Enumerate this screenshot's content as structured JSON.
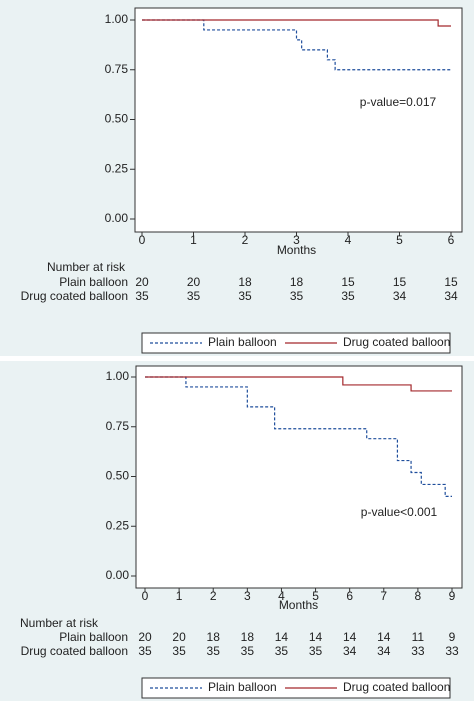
{
  "chart_data": [
    {
      "type": "line",
      "x_label": "Months",
      "annotation": "p-value=0.017",
      "xlim": [
        0,
        6
      ],
      "xticks": [
        0,
        1,
        2,
        3,
        4,
        5,
        6
      ],
      "ylim": [
        0,
        1
      ],
      "yticks": [
        {
          "value": 0,
          "label": "0.00"
        },
        {
          "value": 0.25,
          "label": "0.25"
        },
        {
          "value": 0.5,
          "label": "0.50"
        },
        {
          "value": 0.75,
          "label": "0.75"
        },
        {
          "value": 1,
          "label": "1.00"
        }
      ],
      "series": [
        {
          "name": "Plain balloon",
          "color": "#1f4e9c",
          "dash": true,
          "x": [
            0,
            1.2,
            1.2,
            3,
            3,
            3.1,
            3.1,
            3.6,
            3.6,
            3.75,
            3.75,
            6
          ],
          "values": [
            1,
            1,
            0.95,
            0.95,
            0.9,
            0.9,
            0.85,
            0.85,
            0.8,
            0.8,
            0.75,
            0.75
          ]
        },
        {
          "name": "Drug coated balloon",
          "color": "#a3282c",
          "dash": false,
          "x": [
            0,
            5.75,
            5.75,
            6
          ],
          "values": [
            1,
            1,
            0.97,
            0.97
          ]
        }
      ],
      "risk_table": {
        "title": "Number at risk",
        "rows": [
          {
            "name": "Plain balloon",
            "values": [
              20,
              20,
              18,
              18,
              15,
              15,
              15
            ]
          },
          {
            "name": "Drug coated balloon",
            "values": [
              35,
              35,
              35,
              35,
              35,
              34,
              34
            ]
          }
        ]
      }
    },
    {
      "type": "line",
      "x_label": "Months",
      "annotation": "p-value<0.001",
      "xlim": [
        0,
        9
      ],
      "xticks": [
        0,
        1,
        2,
        3,
        4,
        5,
        6,
        7,
        8,
        9
      ],
      "ylim": [
        0,
        1
      ],
      "yticks": [
        {
          "value": 0,
          "label": "0.00"
        },
        {
          "value": 0.25,
          "label": "0.25"
        },
        {
          "value": 0.5,
          "label": "0.50"
        },
        {
          "value": 0.75,
          "label": "0.75"
        },
        {
          "value": 1,
          "label": "1.00"
        }
      ],
      "series": [
        {
          "name": "Plain balloon",
          "color": "#1f4e9c",
          "dash": true,
          "x": [
            0,
            1.2,
            1.2,
            3,
            3,
            3.8,
            3.8,
            6.5,
            6.5,
            7.4,
            7.4,
            7.8,
            7.8,
            8.1,
            8.1,
            8.8,
            8.8,
            9
          ],
          "values": [
            1,
            1,
            0.95,
            0.95,
            0.85,
            0.85,
            0.74,
            0.74,
            0.69,
            0.69,
            0.58,
            0.58,
            0.52,
            0.52,
            0.46,
            0.46,
            0.4,
            0.4
          ]
        },
        {
          "name": "Drug coated balloon",
          "color": "#a3282c",
          "dash": false,
          "x": [
            0,
            5.8,
            5.8,
            7.8,
            7.8,
            9
          ],
          "values": [
            1,
            1,
            0.96,
            0.96,
            0.93,
            0.93
          ]
        }
      ],
      "risk_table": {
        "title": "Number at risk",
        "rows": [
          {
            "name": "Plain balloon",
            "values": [
              20,
              20,
              18,
              18,
              14,
              14,
              14,
              14,
              11,
              9
            ]
          },
          {
            "name": "Drug coated balloon",
            "values": [
              35,
              35,
              35,
              35,
              35,
              35,
              34,
              34,
              33,
              33
            ]
          }
        ]
      }
    }
  ]
}
